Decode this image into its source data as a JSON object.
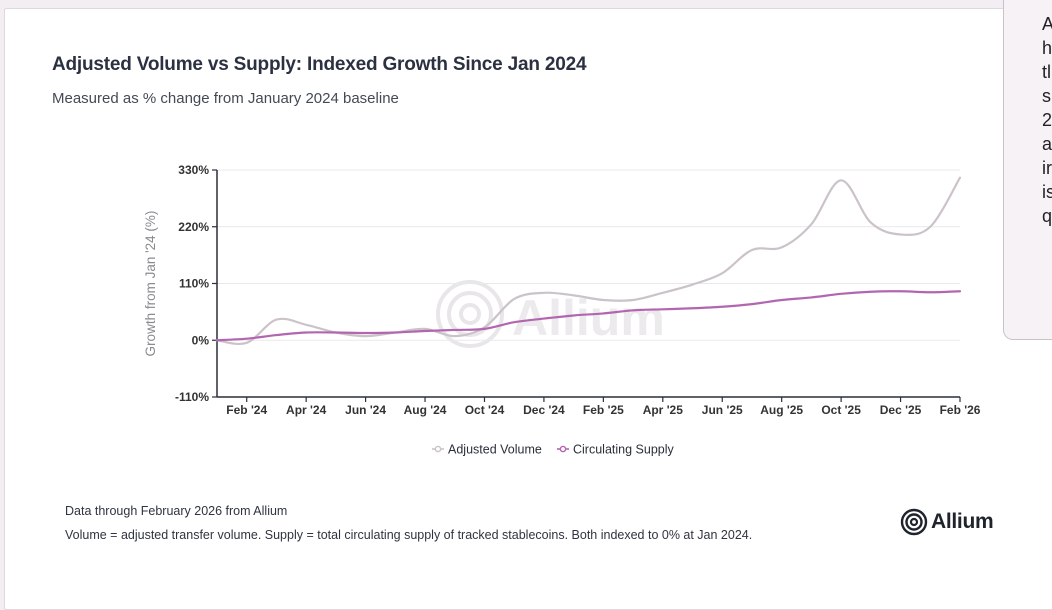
{
  "side_panel": {
    "lines": [
      "A",
      "h",
      "tl",
      "s",
      "2",
      "a",
      "ir",
      "is",
      "q"
    ]
  },
  "footnote": {
    "source": "Data through February 2026 from Allium",
    "definition": "Volume = adjusted transfer volume. Supply = total circulating supply of tracked stablecoins. Both indexed to 0% at Jan 2024."
  },
  "logo": {
    "text": "Allium",
    "icon": "allium-logo-icon",
    "watermark": "Allium"
  },
  "colors": {
    "volume": "#cbc3c9",
    "supply": "#b366b0",
    "axis": "#2b2f3a",
    "grid": "#e9e9ec"
  },
  "chart_data": {
    "type": "line",
    "title": "Adjusted Volume vs Supply: Indexed Growth Since Jan 2024",
    "subtitle": "Measured as % change from January 2024 baseline",
    "xlabel": "",
    "ylabel": "Growth from Jan '24 (%)",
    "ylim": [
      -110,
      330
    ],
    "y_ticks": [
      -110,
      0,
      110,
      220,
      330
    ],
    "y_tick_labels": [
      "-110%",
      "0%",
      "110%",
      "220%",
      "330%"
    ],
    "x_tick_labels": [
      "Feb '24",
      "Apr '24",
      "Jun '24",
      "Aug '24",
      "Oct '24",
      "Dec '24",
      "Feb '25",
      "Apr '25",
      "Jun '25",
      "Aug '25",
      "Oct '25",
      "Dec '25",
      "Feb '26"
    ],
    "x_tick_positions": [
      1,
      3,
      5,
      7,
      9,
      11,
      13,
      15,
      17,
      19,
      21,
      23,
      25
    ],
    "x": [
      "Jan 2024",
      "Feb 2024",
      "Mar 2024",
      "Apr 2024",
      "May 2024",
      "Jun 2024",
      "Jul 2024",
      "Aug 2024",
      "Sep 2024",
      "Oct 2024",
      "Nov 2024",
      "Dec 2024",
      "Jan 2025",
      "Feb 2025",
      "Mar 2025",
      "Apr 2025",
      "May 2025",
      "Jun 2025",
      "Jul 2025",
      "Aug 2025",
      "Sep 2025",
      "Oct 2025",
      "Nov 2025",
      "Dec 2025",
      "Jan 2026",
      "Feb 2026"
    ],
    "grid": true,
    "legend": "bottom",
    "series": [
      {
        "name": "Adjusted Volume",
        "values": [
          0,
          -5,
          40,
          30,
          15,
          8,
          15,
          22,
          8,
          25,
          80,
          92,
          87,
          78,
          78,
          92,
          108,
          130,
          175,
          180,
          225,
          310,
          228,
          205,
          220,
          315
        ]
      },
      {
        "name": "Circulating Supply",
        "values": [
          0,
          3,
          10,
          15,
          15,
          14,
          15,
          18,
          20,
          22,
          35,
          42,
          48,
          52,
          58,
          60,
          62,
          65,
          70,
          78,
          83,
          90,
          94,
          95,
          93,
          95
        ]
      }
    ]
  }
}
